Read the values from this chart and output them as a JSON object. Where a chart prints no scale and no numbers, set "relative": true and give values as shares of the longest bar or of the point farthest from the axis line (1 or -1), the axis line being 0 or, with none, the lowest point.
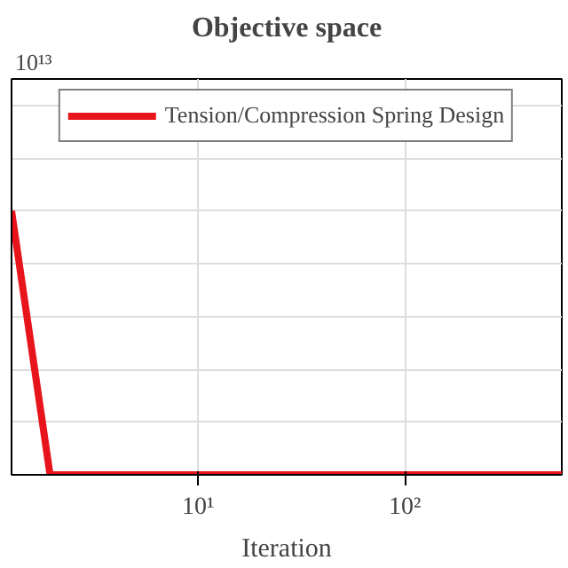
{
  "chart_data": {
    "type": "line",
    "title": "Objective space",
    "xlabel": "Iteration",
    "relative": true,
    "log": "x",
    "x": [
      1.25,
      1.92,
      575
    ],
    "series": [
      {
        "name": "Tension/Compression Spring Design",
        "color": "#e8141c",
        "values": [
          1,
          0,
          0
        ]
      }
    ],
    "xlim": [
      1.25,
      575
    ],
    "xticks": [
      {
        "value": 10,
        "label": "10¹"
      },
      {
        "value": 100,
        "label": "10²"
      }
    ],
    "annotations": [
      "10¹³"
    ],
    "grid": true,
    "legend": "top",
    "marker": "none",
    "line_style": "solid"
  }
}
